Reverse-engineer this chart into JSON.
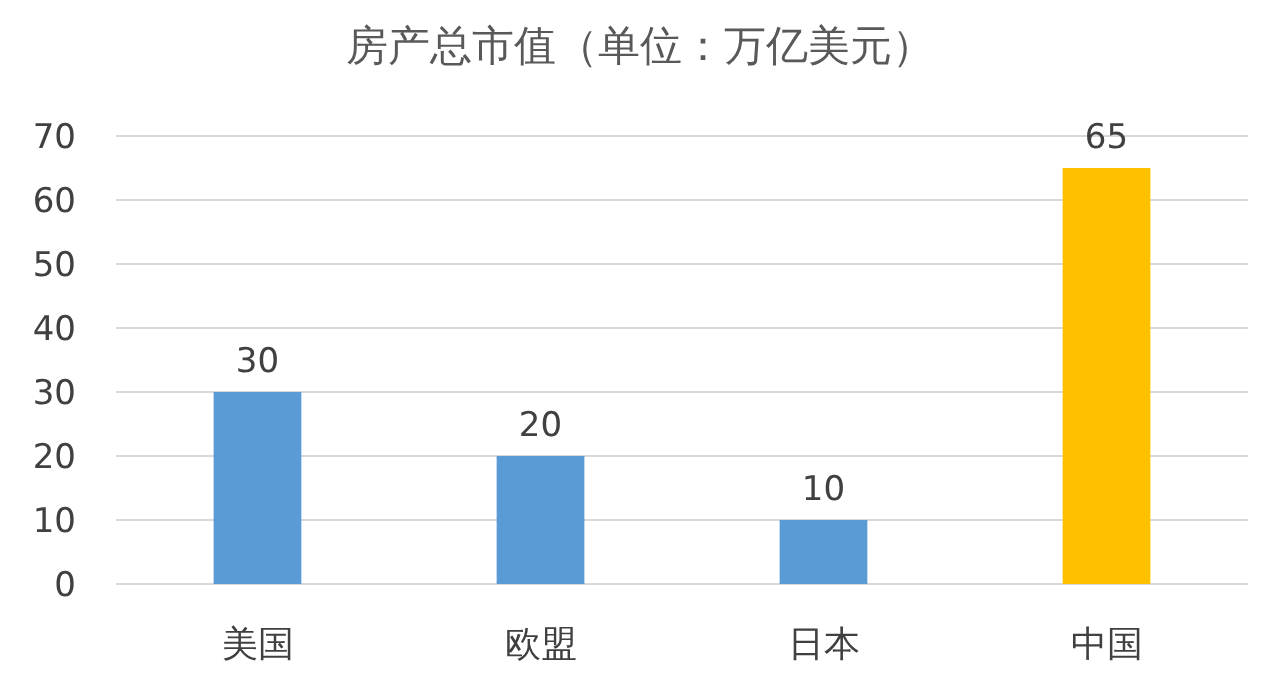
{
  "chart_data": {
    "type": "bar",
    "title": "房产总市值（单位：万亿美元）",
    "categories": [
      "美国",
      "欧盟",
      "日本",
      "中国"
    ],
    "values": [
      30,
      20,
      10,
      65
    ],
    "colors": [
      "#5b9bd5",
      "#5b9bd5",
      "#5b9bd5",
      "#ffc000"
    ],
    "ylim": [
      0,
      70
    ],
    "yticks": [
      0,
      10,
      20,
      30,
      40,
      50,
      60,
      70
    ],
    "grid": "y",
    "data_labels": true
  }
}
